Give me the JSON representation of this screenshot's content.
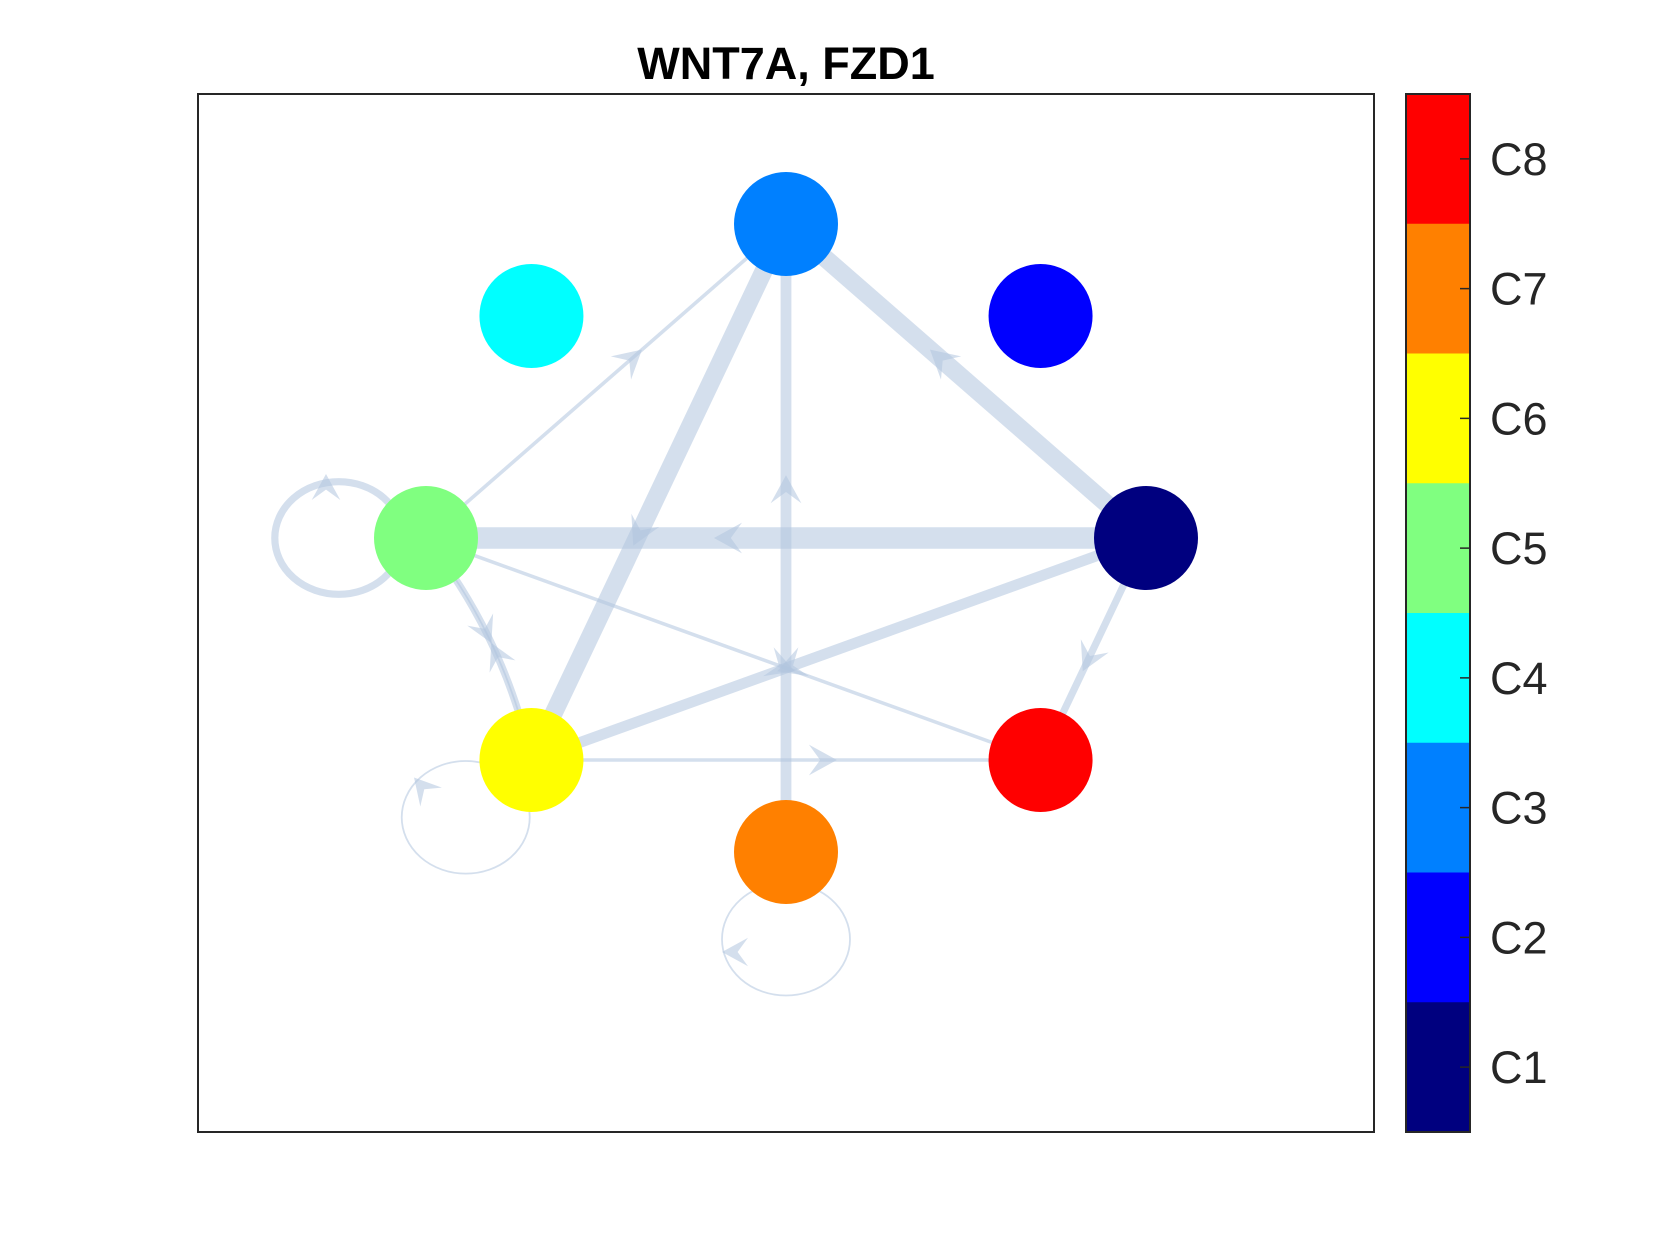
{
  "title": "WNT7A, FZD1",
  "edge_color": "#b0c4de",
  "nodes": [
    {
      "id": "C1",
      "color": "#00007f"
    },
    {
      "id": "C2",
      "color": "#0000ff"
    },
    {
      "id": "C3",
      "color": "#0080ff"
    },
    {
      "id": "C4",
      "color": "#00ffff"
    },
    {
      "id": "C5",
      "color": "#80ff80"
    },
    {
      "id": "C6",
      "color": "#ffff00"
    },
    {
      "id": "C7",
      "color": "#ff8000"
    },
    {
      "id": "C8",
      "color": "#ff0000"
    }
  ],
  "edges": [
    {
      "from": "C1",
      "to": "C3",
      "weight": 5
    },
    {
      "from": "C1",
      "to": "C5",
      "weight": 6
    },
    {
      "from": "C1",
      "to": "C6",
      "weight": 3
    },
    {
      "from": "C1",
      "to": "C8",
      "weight": 2
    },
    {
      "from": "C3",
      "to": "C6",
      "weight": 5
    },
    {
      "from": "C7",
      "to": "C3",
      "weight": 3
    },
    {
      "from": "C5",
      "to": "C3",
      "weight": 1
    },
    {
      "from": "C5",
      "to": "C8",
      "weight": 1
    },
    {
      "from": "C6",
      "to": "C8",
      "weight": 1
    },
    {
      "from": "C6",
      "to": "C5",
      "weight": 2
    },
    {
      "from": "C5",
      "to": "C6",
      "weight": 0.5
    },
    {
      "from": "C5",
      "to": "C5",
      "weight": 2
    },
    {
      "from": "C6",
      "to": "C6",
      "weight": 0.5
    },
    {
      "from": "C7",
      "to": "C7",
      "weight": 0.5
    }
  ],
  "colorbar": {
    "labels": [
      "C8",
      "C7",
      "C6",
      "C5",
      "C4",
      "C3",
      "C2",
      "C1"
    ],
    "colors": [
      "#ff0000",
      "#ff8000",
      "#ffff00",
      "#80ff80",
      "#00ffff",
      "#0080ff",
      "#0000ff",
      "#00007f"
    ]
  }
}
